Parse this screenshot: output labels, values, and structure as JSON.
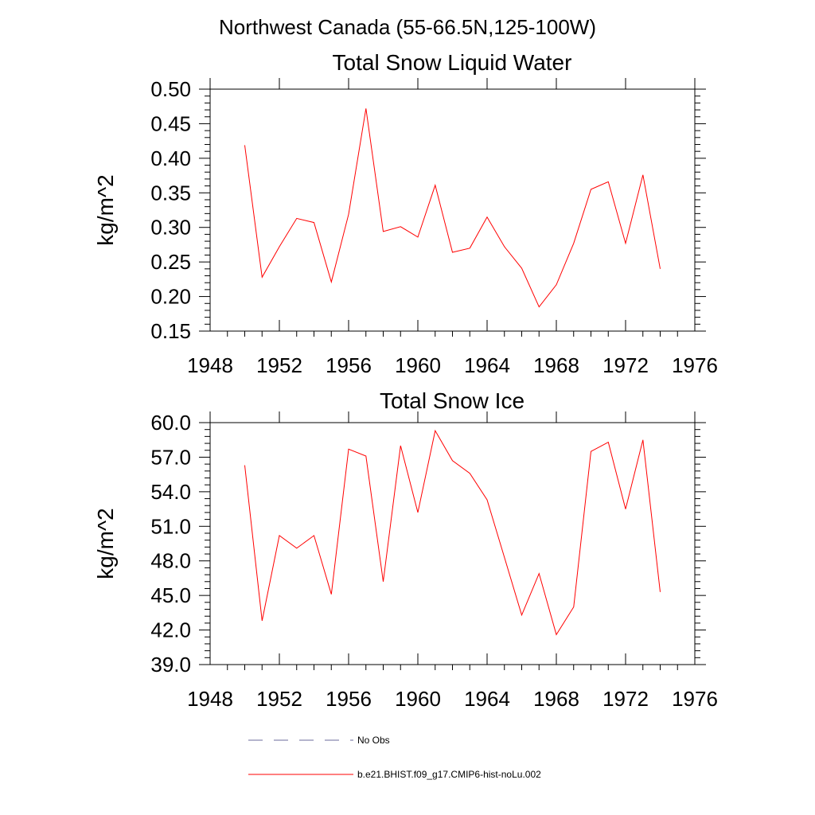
{
  "figure": {
    "title": "Northwest Canada (55-66.5N,125-100W)"
  },
  "chart_data": [
    {
      "type": "line",
      "title": "Total Snow Liquid Water",
      "xlabel": "",
      "ylabel": "kg/m^2",
      "xlim": [
        1948,
        1976
      ],
      "ylim": [
        0.15,
        0.5
      ],
      "xticks": [
        1948,
        1952,
        1956,
        1960,
        1964,
        1968,
        1972,
        1976
      ],
      "xtick_labels": [
        "1948",
        "1952",
        "1956",
        "1960",
        "1964",
        "1968",
        "1972",
        "1976"
      ],
      "yticks": [
        0.15,
        0.2,
        0.25,
        0.3,
        0.35,
        0.4,
        0.45,
        0.5
      ],
      "ytick_labels": [
        "0.15",
        "0.20",
        "0.25",
        "0.30",
        "0.35",
        "0.40",
        "0.45",
        "0.50"
      ],
      "grid": false,
      "series": [
        {
          "name": "b.e21.BHIST.f09_g17.CMIP6-hist-noLu.002",
          "color": "#ff0000",
          "x": [
            1950,
            1951,
            1952,
            1953,
            1954,
            1955,
            1956,
            1957,
            1958,
            1959,
            1960,
            1961,
            1962,
            1963,
            1964,
            1965,
            1966,
            1967,
            1968,
            1969,
            1970,
            1971,
            1972,
            1973,
            1974
          ],
          "y": [
            0.419,
            0.228,
            0.272,
            0.313,
            0.307,
            0.221,
            0.319,
            0.472,
            0.294,
            0.301,
            0.286,
            0.361,
            0.264,
            0.27,
            0.315,
            0.272,
            0.241,
            0.185,
            0.217,
            0.277,
            0.355,
            0.366,
            0.277,
            0.376,
            0.24
          ]
        }
      ]
    },
    {
      "type": "line",
      "title": "Total Snow Ice",
      "xlabel": "",
      "ylabel": "kg/m^2",
      "xlim": [
        1948,
        1976
      ],
      "ylim": [
        39.0,
        60.0
      ],
      "xticks": [
        1948,
        1952,
        1956,
        1960,
        1964,
        1968,
        1972,
        1976
      ],
      "xtick_labels": [
        "1948",
        "1952",
        "1956",
        "1960",
        "1964",
        "1968",
        "1972",
        "1976"
      ],
      "yticks": [
        39.0,
        42.0,
        45.0,
        48.0,
        51.0,
        54.0,
        57.0,
        60.0
      ],
      "ytick_labels": [
        "39.0",
        "42.0",
        "45.0",
        "48.0",
        "51.0",
        "54.0",
        "57.0",
        "60.0"
      ],
      "grid": false,
      "series": [
        {
          "name": "b.e21.BHIST.f09_g17.CMIP6-hist-noLu.002",
          "color": "#ff0000",
          "x": [
            1950,
            1951,
            1952,
            1953,
            1954,
            1955,
            1956,
            1957,
            1958,
            1959,
            1960,
            1961,
            1962,
            1963,
            1964,
            1965,
            1966,
            1967,
            1968,
            1969,
            1970,
            1971,
            1972,
            1973,
            1974
          ],
          "y": [
            56.3,
            42.8,
            50.2,
            49.1,
            50.2,
            45.1,
            57.7,
            57.1,
            46.2,
            58.0,
            52.2,
            59.3,
            56.7,
            55.6,
            53.3,
            48.3,
            43.3,
            46.9,
            41.6,
            44.0,
            57.5,
            58.3,
            52.5,
            58.5,
            45.3
          ]
        }
      ]
    }
  ],
  "legend": {
    "placement": "bottom",
    "entries": [
      {
        "label": "No Obs",
        "color": "#6b6b9b",
        "style": "dashed"
      },
      {
        "label": "b.e21.BHIST.f09_g17.CMIP6-hist-noLu.002",
        "color": "#ff0000",
        "style": "solid"
      }
    ]
  }
}
